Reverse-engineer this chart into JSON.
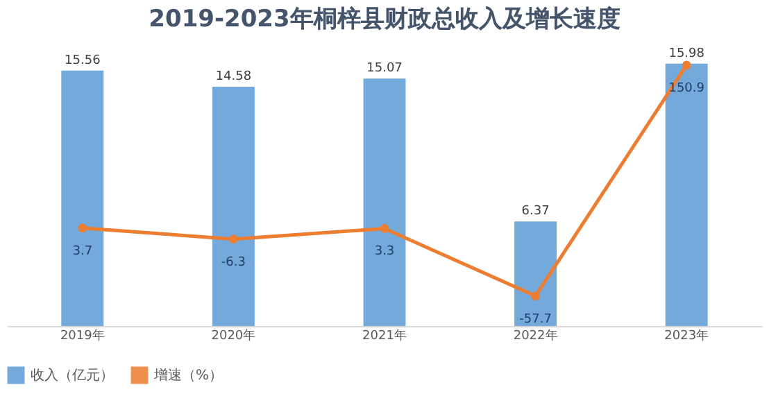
{
  "chart_data": {
    "type": "bar",
    "title": "2019-2023年桐梓县财政总收入及增长速度",
    "categories": [
      "2019年",
      "2020年",
      "2021年",
      "2022年",
      "2023年"
    ],
    "series": [
      {
        "name": "收入（亿元）",
        "color": "#5b9bd5",
        "values": [
          15.56,
          14.58,
          15.07,
          6.37,
          15.98
        ]
      },
      {
        "name": "增速（%）",
        "type": "line",
        "axis": "y2",
        "color": "#ed7d31",
        "values": [
          3.7,
          -6.3,
          3.3,
          -57.7,
          150.9
        ]
      }
    ],
    "data_labels": true,
    "tick_labels": "x",
    "legend": "bottom",
    "marker": "circle",
    "line_style": "solid"
  }
}
